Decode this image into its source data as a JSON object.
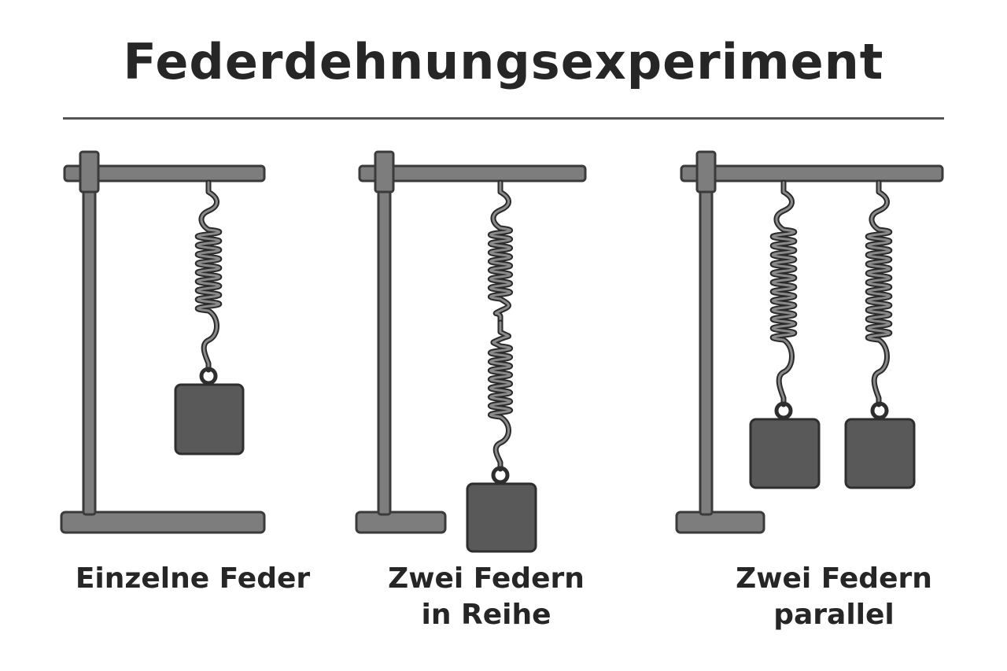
{
  "title": "Federdehnungsexperiment",
  "setups": [
    {
      "caption": "Einzelne Feder",
      "springs": 1
    },
    {
      "caption_line1": "Zwei Federn",
      "caption_line2": "in Reihe",
      "springs": 2
    },
    {
      "caption": "Zwei Federn parallel",
      "springs": 2
    }
  ],
  "colors": {
    "frame_fill": "#7d7d7d",
    "frame_stroke": "#3a3a3a",
    "weight_fill": "#595959",
    "spring": "#4a4a4a",
    "text": "#262626"
  }
}
